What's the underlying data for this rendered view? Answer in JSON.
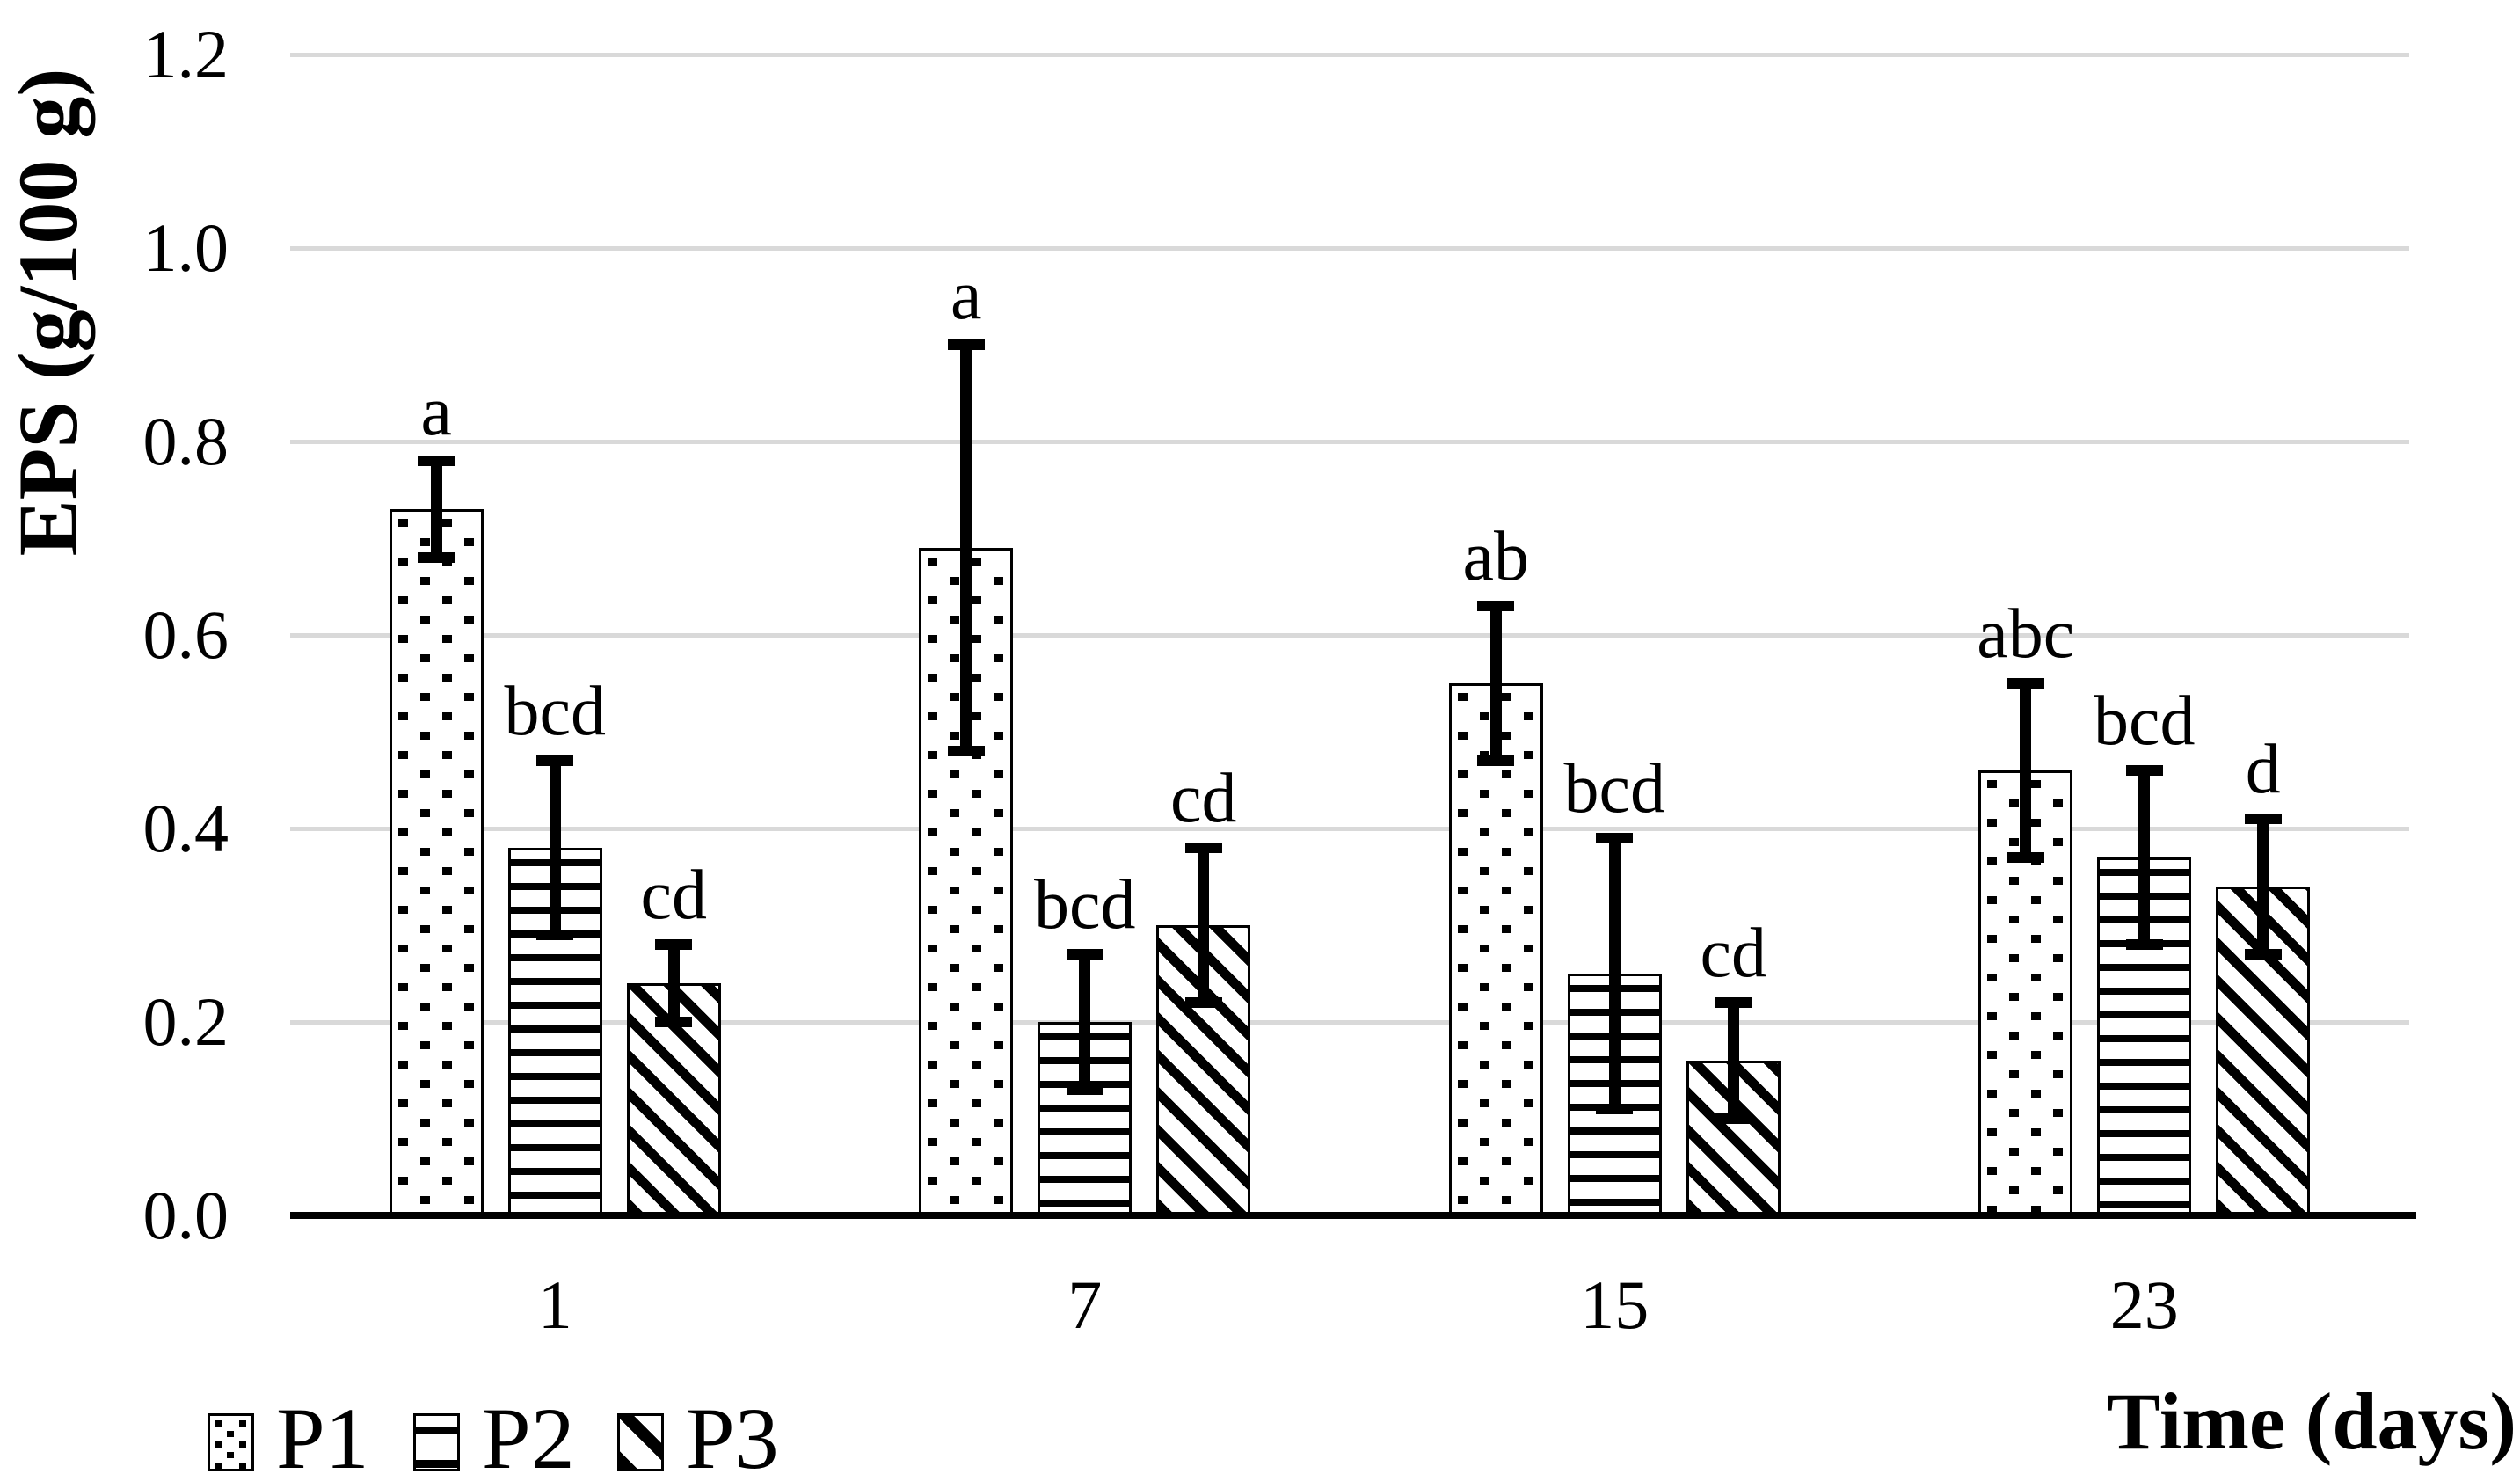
{
  "chart_data": {
    "type": "bar",
    "title": "",
    "xlabel": "Time (days)",
    "ylabel": "EPS (g/100 g)",
    "categories": [
      "1",
      "7",
      "15",
      "23"
    ],
    "series": [
      {
        "name": "P1",
        "pattern": "dots",
        "values": [
          0.73,
          0.69,
          0.55,
          0.46
        ],
        "errors": [
          0.05,
          0.21,
          0.08,
          0.09
        ],
        "stat_letters": [
          "a",
          "a",
          "ab",
          "abc"
        ]
      },
      {
        "name": "P2",
        "pattern": "horizontal-lines",
        "values": [
          0.38,
          0.2,
          0.25,
          0.37
        ],
        "errors": [
          0.09,
          0.07,
          0.14,
          0.09
        ],
        "stat_letters": [
          "bcd",
          "bcd",
          "bcd",
          "bcd"
        ]
      },
      {
        "name": "P3",
        "pattern": "diagonal-stripes",
        "values": [
          0.24,
          0.3,
          0.16,
          0.34
        ],
        "errors": [
          0.04,
          0.08,
          0.06,
          0.07
        ],
        "stat_letters": [
          "cd",
          "cd",
          "cd",
          "d"
        ]
      }
    ],
    "ylim": [
      0,
      1.2
    ],
    "ytick_step": 0.2,
    "yticks": [
      "0.0",
      "0.2",
      "0.4",
      "0.6",
      "0.8",
      "1.0",
      "1.2"
    ],
    "grid": true,
    "error_bars": true,
    "legend_position": "bottom-left",
    "colors": {
      "bar_fill": "#ffffff",
      "bar_stroke": "#000000",
      "gridline": "#d9d9d9",
      "text": "#000000",
      "background": "#ffffff"
    }
  }
}
